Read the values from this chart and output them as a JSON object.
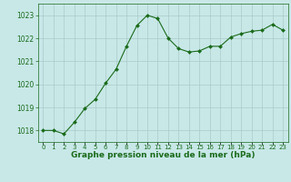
{
  "x": [
    0,
    1,
    2,
    3,
    4,
    5,
    6,
    7,
    8,
    9,
    10,
    11,
    12,
    13,
    14,
    15,
    16,
    17,
    18,
    19,
    20,
    21,
    22,
    23
  ],
  "y": [
    1018.0,
    1018.0,
    1017.85,
    1018.35,
    1018.95,
    1019.35,
    1020.05,
    1020.65,
    1021.65,
    1022.55,
    1023.0,
    1022.85,
    1022.0,
    1021.55,
    1021.4,
    1021.45,
    1021.65,
    1021.65,
    1022.05,
    1022.2,
    1022.3,
    1022.35,
    1022.6,
    1022.35
  ],
  "line_color": "#1a6b1a",
  "marker": "D",
  "marker_size": 2.0,
  "bg_color": "#c8e8e8",
  "grid_color": "#aacaca",
  "title": "Graphe pression niveau de la mer (hPa)",
  "title_color": "#1a6b1a",
  "title_fontsize": 6.5,
  "xlabel_ticks": [
    "0",
    "1",
    "2",
    "3",
    "4",
    "5",
    "6",
    "7",
    "8",
    "9",
    "10",
    "11",
    "12",
    "13",
    "14",
    "15",
    "16",
    "17",
    "18",
    "19",
    "20",
    "21",
    "22",
    "23"
  ],
  "yticks": [
    1018,
    1019,
    1020,
    1021,
    1022,
    1023
  ],
  "ylim": [
    1017.5,
    1023.5
  ],
  "xlim": [
    -0.5,
    23.5
  ],
  "tick_color": "#1a6b1a",
  "tick_fontsize": 5.5,
  "xtick_fontsize": 5.0
}
